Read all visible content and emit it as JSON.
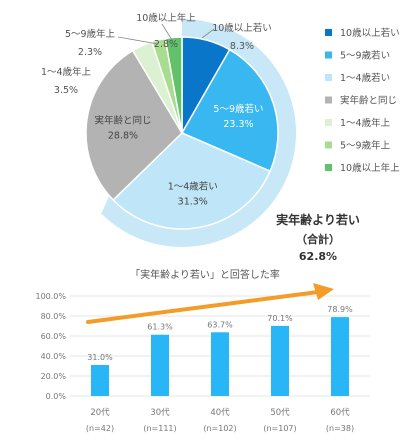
{
  "colors": {
    "c1": "#0a76c9",
    "c2": "#39b7f0",
    "c3": "#bfe6f8",
    "c4": "#b3b3b3",
    "c5": "#dcf0d2",
    "c6": "#a8dc8e",
    "c7": "#62c26a",
    "ring": "#c8e8f7",
    "bar": "#29b6f6",
    "arrow": "#f39c28",
    "text": "#555555",
    "dark": "#333333"
  },
  "chart_data": [
    {
      "type": "pie",
      "categories": [
        "10歳以上若い",
        "5〜9歳若い",
        "1〜4歳若い",
        "実年齢と同じ",
        "1〜4歳年上",
        "5〜9歳年上",
        "10歳以上年上"
      ],
      "values": [
        8.3,
        23.3,
        31.3,
        28.8,
        3.5,
        2.3,
        2.8
      ],
      "value_labels": [
        "8.3%",
        "23.3%",
        "31.3%",
        "28.8%",
        "3.5%",
        "2.3%",
        "2.8%"
      ],
      "legend": {
        "position": "right",
        "entries": [
          "10歳以上若い",
          "5〜9歳若い",
          "1〜4歳若い",
          "実年齢と同じ",
          "1〜4歳年上",
          "5〜9歳年上",
          "10歳以上年上"
        ]
      },
      "annotation": {
        "line1": "実年齢より若い",
        "line2": "（合計）",
        "value": "62.8%"
      }
    },
    {
      "type": "bar",
      "title": "「実年齢より若い」と回答した率",
      "categories": [
        "20代",
        "30代",
        "40代",
        "50代",
        "60代"
      ],
      "sample_sizes": [
        "(n=42)",
        "(n=111)",
        "(n=102)",
        "(n=107)",
        "(n=38)"
      ],
      "values": [
        31.0,
        61.3,
        63.7,
        70.1,
        78.9
      ],
      "value_labels": [
        "31.0%",
        "61.3%",
        "63.7%",
        "70.1%",
        "78.9%"
      ],
      "ylim": [
        0,
        100
      ],
      "yticks": [
        "0.0%",
        "20.0%",
        "40.0%",
        "60.0%",
        "80.0%",
        "100.0%"
      ],
      "grid": true,
      "trend_arrow": true
    }
  ]
}
